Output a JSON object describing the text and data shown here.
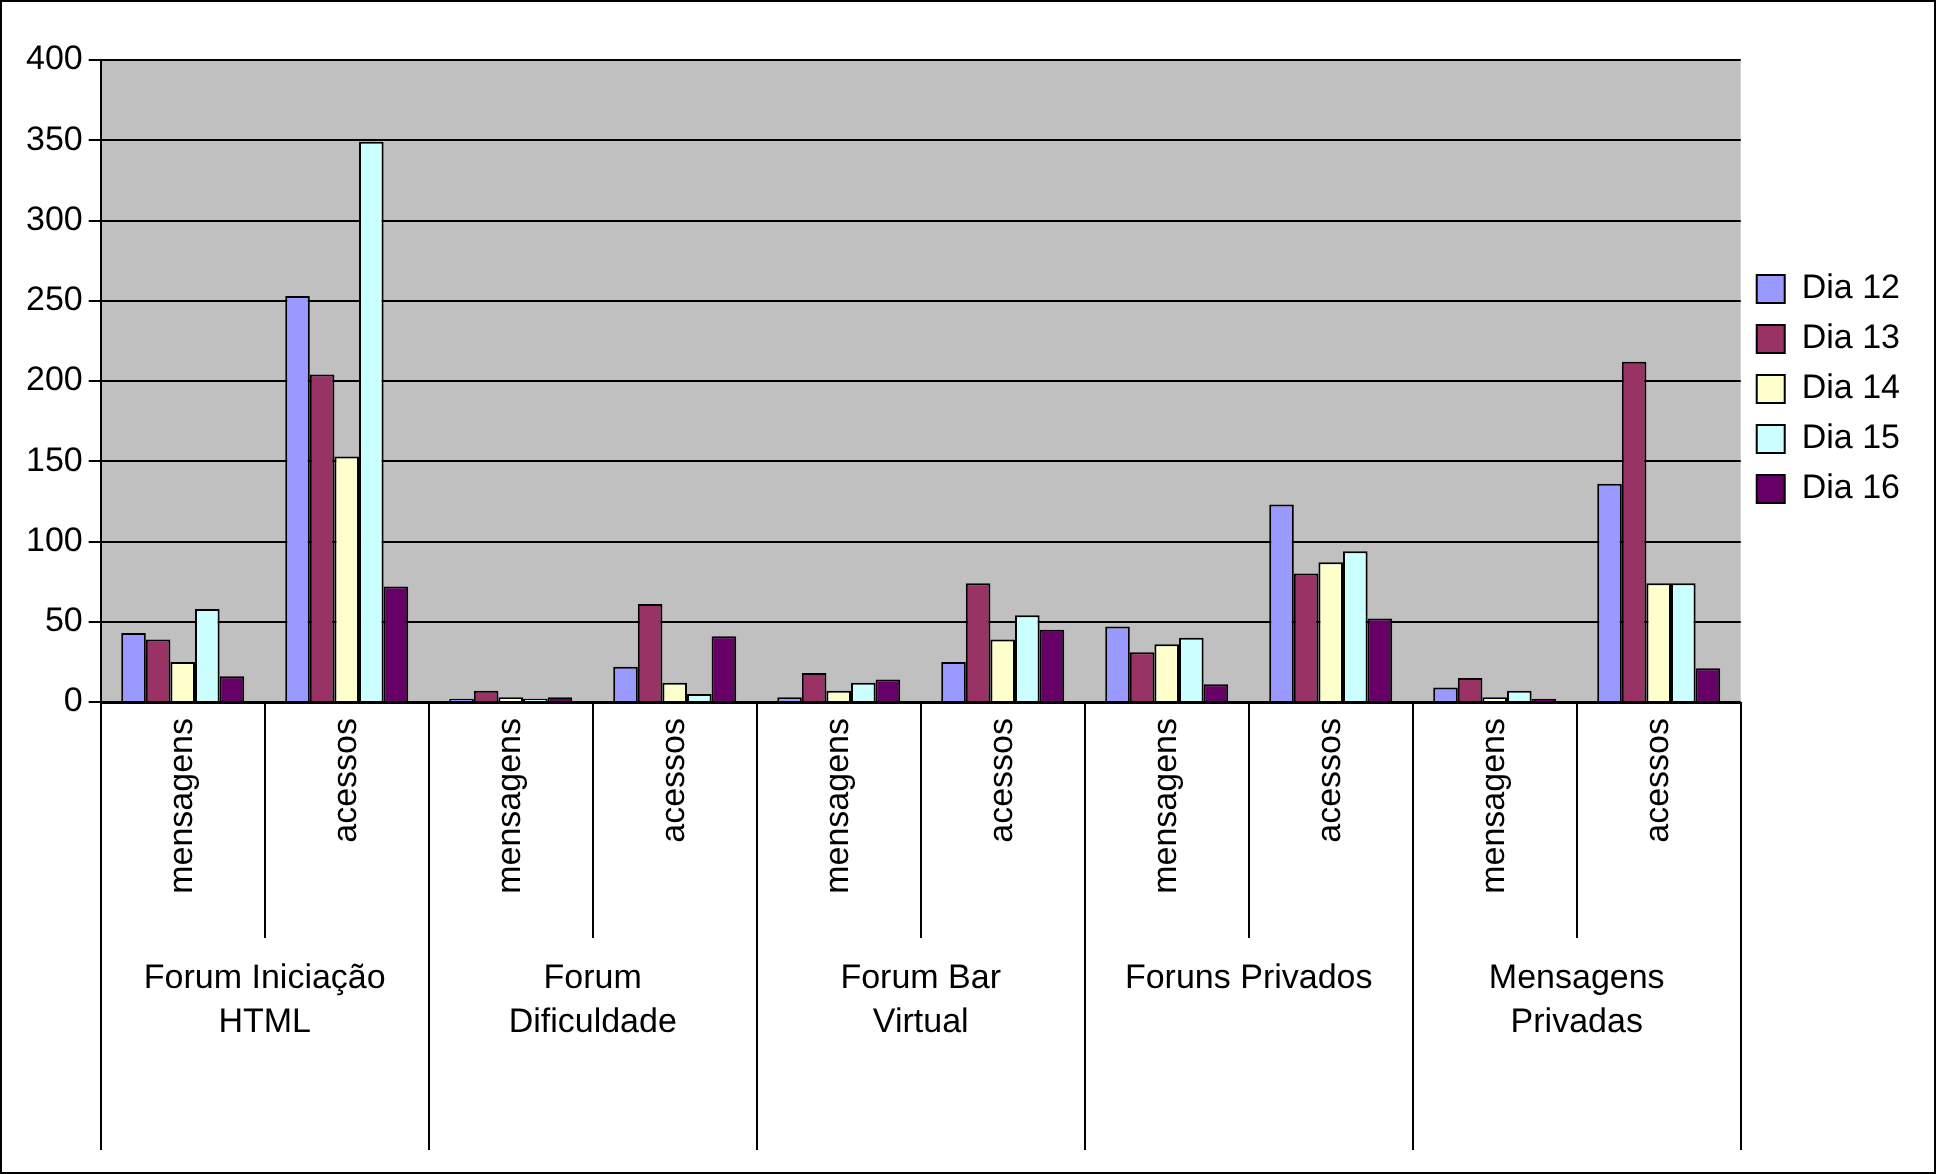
{
  "chart_data": {
    "type": "bar",
    "categories": [
      "mensagens",
      "acessos",
      "mensagens",
      "acessos",
      "mensagens",
      "acessos",
      "mensagens",
      "acessos",
      "mensagens",
      "acessos"
    ],
    "annotations": [
      "Forum Iniciação HTML",
      "Forum Dificuldade",
      "Forum Bar Virtual",
      "Foruns Privados",
      "Mensagens Privadas"
    ],
    "series": [
      {
        "name": "Dia 12",
        "color": "#9999ff",
        "values": [
          43,
          253,
          2,
          22,
          3,
          25,
          47,
          123,
          9,
          136
        ]
      },
      {
        "name": "Dia 13",
        "color": "#993366",
        "values": [
          39,
          204,
          7,
          61,
          18,
          74,
          31,
          80,
          15,
          212
        ]
      },
      {
        "name": "Dia 14",
        "color": "#ffffcc",
        "values": [
          25,
          153,
          3,
          12,
          7,
          39,
          36,
          87,
          3,
          74
        ]
      },
      {
        "name": "Dia 15",
        "color": "#ccffff",
        "values": [
          58,
          349,
          2,
          5,
          12,
          54,
          40,
          94,
          7,
          74
        ]
      },
      {
        "name": "Dia 16",
        "color": "#660066",
        "values": [
          16,
          72,
          3,
          41,
          14,
          45,
          11,
          52,
          2,
          21
        ]
      }
    ],
    "ylim": [
      0,
      400
    ],
    "yticks": [
      0,
      50,
      100,
      150,
      200,
      250,
      300,
      350,
      400
    ],
    "grid": "y",
    "legend": "right"
  }
}
